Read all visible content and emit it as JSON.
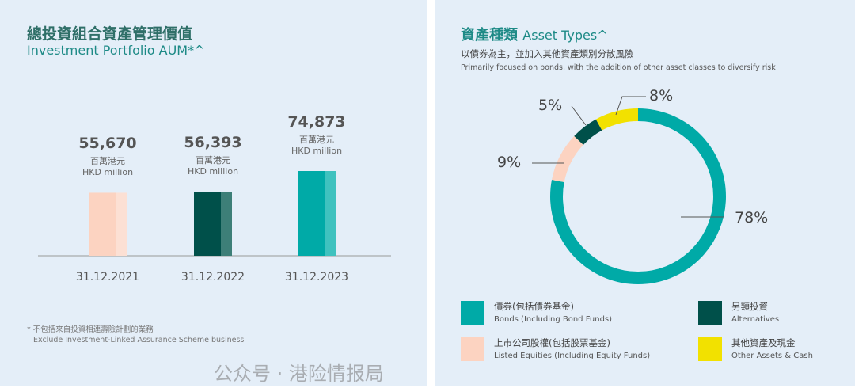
{
  "left": {
    "title_zh": "總投資組合資產管理價值",
    "title_en": "Investment Portfolio AUM*^",
    "footnote_zh": "* 不包括來自投資相連壽險計劃的業務",
    "footnote_en": "Exclude Investment-Linked Assurance Scheme business"
  },
  "right": {
    "title_zh": "資產種類",
    "title_en": "Asset Types^",
    "subtitle_zh": "以債券為主，並加入其他資產類別分散風險",
    "subtitle_en": "Primarily focused on bonds, with the addition of other asset classes to diversify risk"
  },
  "watermark": "公众号 · 港险情报局",
  "chart_data": [
    {
      "type": "bar",
      "categories": [
        "31.12.2021",
        "31.12.2022",
        "31.12.2023"
      ],
      "values": [
        55670,
        56393,
        74873
      ],
      "value_labels": [
        "55,670",
        "56,393",
        "74,873"
      ],
      "unit_zh": "百萬港元",
      "unit_en": "HKD million",
      "colors": [
        "#fcd3c1",
        "#00504a",
        "#00aaa7"
      ],
      "accent_colors": [
        "#fce0d4",
        "#3d7f78",
        "#3fc2bf"
      ]
    },
    {
      "type": "pie",
      "donut": true,
      "slices": [
        {
          "label_zh": "債券(包括債券基金)",
          "label_en": "Bonds (Including Bond Funds)",
          "value": 78,
          "label": "78%",
          "color": "#00aaa7"
        },
        {
          "label_zh": "上市公司股權(包括股票基金)",
          "label_en": "Listed Equities (Including Equity Funds)",
          "value": 9,
          "label": "9%",
          "color": "#fcd3c1"
        },
        {
          "label_zh": "另類投資",
          "label_en": "Alternatives",
          "value": 5,
          "label": "5%",
          "color": "#00504a"
        },
        {
          "label_zh": "其他資產及現金",
          "label_en": "Other Assets & Cash",
          "value": 8,
          "label": "8%",
          "color": "#f2e100"
        }
      ]
    }
  ]
}
